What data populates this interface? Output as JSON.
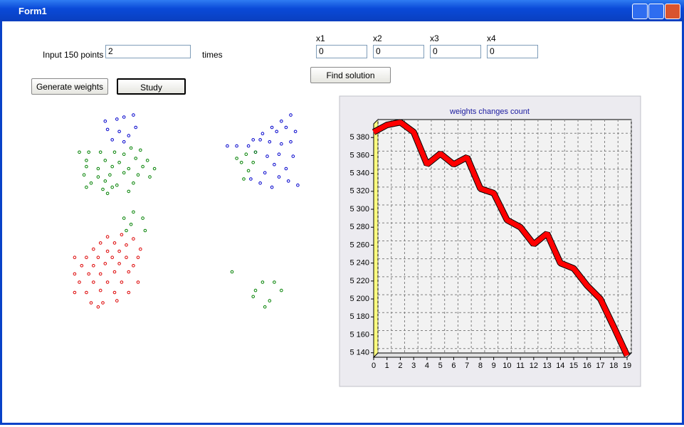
{
  "window": {
    "title": "Form1"
  },
  "form": {
    "input_label": "Input 150 points",
    "input_value": "2",
    "times_label": "times",
    "generate_button": "Generate weights",
    "study_button": "Study",
    "find_button": "Find solution",
    "weights": [
      {
        "label": "x1",
        "value": "0"
      },
      {
        "label": "x2",
        "value": "0"
      },
      {
        "label": "x3",
        "value": "0"
      },
      {
        "label": "x4",
        "value": "0"
      }
    ]
  },
  "chart_data": [
    {
      "type": "line",
      "title": "weights changes count",
      "x": [
        0,
        1,
        2,
        3,
        4,
        5,
        6,
        7,
        8,
        9,
        10,
        11,
        12,
        13,
        14,
        15,
        16,
        17,
        18,
        19
      ],
      "values": [
        5386,
        5394,
        5397,
        5386,
        5350,
        5362,
        5350,
        5358,
        5323,
        5318,
        5288,
        5280,
        5261,
        5273,
        5240,
        5234,
        5215,
        5200,
        5169,
        5137
      ],
      "color": "#ff0000",
      "grid": true,
      "xlim": [
        0,
        19
      ],
      "xticks": [
        0,
        1,
        2,
        3,
        4,
        5,
        6,
        7,
        8,
        9,
        10,
        11,
        12,
        13,
        14,
        15,
        16,
        17,
        18,
        19
      ],
      "ylim": [
        5135,
        5400
      ],
      "yticks": [
        {
          "value": 5140,
          "label": "5 140"
        },
        {
          "value": 5160,
          "label": "5 160"
        },
        {
          "value": 5180,
          "label": "5 180"
        },
        {
          "value": 5200,
          "label": "5 200"
        },
        {
          "value": 5220,
          "label": "5 220"
        },
        {
          "value": 5240,
          "label": "5 240"
        },
        {
          "value": 5260,
          "label": "5 260"
        },
        {
          "value": 5280,
          "label": "5 280"
        },
        {
          "value": 5300,
          "label": "5 300"
        },
        {
          "value": 5320,
          "label": "5 320"
        },
        {
          "value": 5340,
          "label": "5 340"
        },
        {
          "value": 5360,
          "label": "5 360"
        },
        {
          "value": 5380,
          "label": "5 380"
        }
      ]
    },
    {
      "type": "scatter",
      "xlim": [
        0,
        100
      ],
      "ylim": [
        0,
        100
      ],
      "series": [
        {
          "color": "#0000cc",
          "x": [
            16,
            21,
            24,
            28,
            17,
            22,
            26,
            19,
            29,
            24,
            68,
            72,
            77,
            79,
            83,
            87,
            91,
            95,
            89,
            93,
            97,
            82,
            86,
            91,
            95,
            80,
            85,
            90,
            96,
            88,
            93,
            84,
            90,
            94,
            98,
            87,
            82,
            78
          ],
          "y": [
            93,
            94,
            95,
            96,
            89,
            88,
            86,
            84,
            90,
            83,
            81,
            81,
            81,
            84,
            87,
            90,
            93,
            96,
            88,
            90,
            88,
            84,
            83,
            82,
            83,
            78,
            76,
            77,
            76,
            72,
            70,
            68,
            66,
            64,
            62,
            61,
            63,
            65
          ]
        },
        {
          "color": "#008000",
          "x": [
            5,
            9,
            14,
            20,
            27,
            31,
            24,
            8,
            16,
            22,
            29,
            34,
            8,
            13,
            19,
            26,
            32,
            37,
            7,
            13,
            18,
            24,
            30,
            35,
            10,
            16,
            21,
            28,
            8,
            15,
            19,
            26,
            17,
            28,
            24,
            32,
            27,
            33,
            25,
            76,
            80,
            74,
            79,
            77,
            75,
            72,
            70,
            83,
            88,
            80,
            91,
            79,
            86,
            84
          ],
          "y": [
            78,
            78,
            78,
            78,
            80,
            79,
            77,
            74,
            74,
            73,
            75,
            74,
            71,
            70,
            71,
            70,
            71,
            70,
            67,
            66,
            67,
            68,
            67,
            66,
            63,
            64,
            62,
            63,
            61,
            60,
            61,
            59,
            58,
            49,
            46,
            46,
            43,
            40,
            40,
            77,
            78,
            73,
            73,
            69,
            65,
            75,
            20,
            15,
            15,
            11,
            11,
            8,
            6,
            3
          ]
        },
        {
          "color": "#dd0000",
          "x": [
            17,
            23,
            28,
            14,
            20,
            25,
            11,
            17,
            22,
            31,
            3,
            8,
            13,
            19,
            25,
            30,
            6,
            11,
            16,
            22,
            28,
            3,
            9,
            14,
            20,
            26,
            5,
            11,
            17,
            23,
            30,
            3,
            8,
            14,
            20,
            26,
            10,
            15,
            21,
            13
          ],
          "y": [
            37,
            38,
            36,
            34,
            34,
            33,
            31,
            30,
            30,
            31,
            27,
            27,
            27,
            27,
            27,
            27,
            23,
            23,
            24,
            24,
            23,
            19,
            19,
            19,
            20,
            20,
            15,
            15,
            15,
            15,
            15,
            10,
            10,
            11,
            10,
            10,
            5,
            5,
            6,
            3
          ]
        }
      ]
    }
  ]
}
